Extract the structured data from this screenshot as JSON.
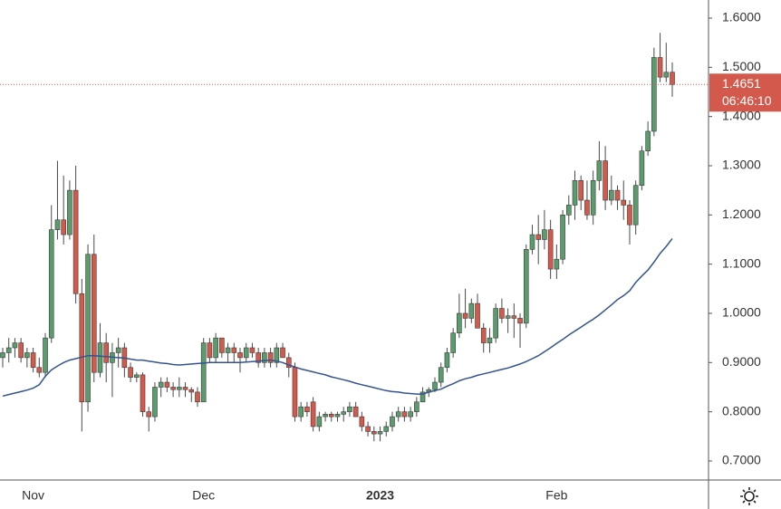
{
  "chart_data": {
    "type": "candlestick",
    "up_color": "#5b9c6c",
    "down_color": "#d2594b",
    "ma_color": "#33548f",
    "ylim": [
      0.6613,
      1.6368
    ],
    "yticks": [
      {
        "value": 0.7,
        "label": "0.7000"
      },
      {
        "value": 0.8,
        "label": "0.8000"
      },
      {
        "value": 0.9,
        "label": "0.9000"
      },
      {
        "value": 1.0,
        "label": "1.0000"
      },
      {
        "value": 1.1,
        "label": "1.1000"
      },
      {
        "value": 1.2,
        "label": "1.2000"
      },
      {
        "value": 1.3,
        "label": "1.3000"
      },
      {
        "value": 1.4,
        "label": "1.4000"
      },
      {
        "value": 1.5,
        "label": "1.5000"
      },
      {
        "value": 1.6,
        "label": "1.6000"
      }
    ],
    "countdown": "06:46:10",
    "categories": [
      null,
      null,
      null,
      null,
      null,
      "Nov",
      null,
      null,
      null,
      null,
      null,
      null,
      null,
      null,
      null,
      null,
      null,
      null,
      null,
      null,
      null,
      null,
      null,
      null,
      null,
      null,
      null,
      null,
      null,
      null,
      null,
      null,
      null,
      "Dec",
      null,
      null,
      null,
      null,
      null,
      null,
      null,
      null,
      null,
      null,
      null,
      null,
      null,
      null,
      null,
      null,
      null,
      null,
      null,
      null,
      null,
      null,
      null,
      null,
      null,
      null,
      null,
      null,
      "2023",
      null,
      null,
      null,
      null,
      null,
      null,
      null,
      null,
      null,
      null,
      null,
      null,
      null,
      null,
      null,
      null,
      null,
      null,
      null,
      null,
      null,
      null,
      null,
      null,
      null,
      null,
      null,
      null,
      "Feb",
      null,
      null,
      null,
      null,
      null,
      null,
      null,
      null,
      null,
      null,
      null,
      null,
      null,
      null,
      null,
      null,
      null,
      null
    ],
    "ohlc": [
      [
        0.91,
        0.93,
        0.89,
        0.92
      ],
      [
        0.92,
        0.95,
        0.9,
        0.93
      ],
      [
        0.93,
        0.95,
        0.91,
        0.94
      ],
      [
        0.94,
        0.95,
        0.9,
        0.91
      ],
      [
        0.91,
        0.93,
        0.89,
        0.92
      ],
      [
        0.92,
        0.93,
        0.88,
        0.89
      ],
      [
        0.89,
        0.91,
        0.87,
        0.88
      ],
      [
        0.88,
        0.96,
        0.87,
        0.95
      ],
      [
        0.95,
        1.22,
        0.94,
        1.17
      ],
      [
        1.17,
        1.31,
        1.15,
        1.19
      ],
      [
        1.19,
        1.28,
        1.14,
        1.16
      ],
      [
        1.16,
        1.27,
        1.15,
        1.25
      ],
      [
        1.25,
        1.3,
        1.02,
        1.04
      ],
      [
        1.04,
        1.07,
        0.76,
        0.82
      ],
      [
        0.82,
        1.14,
        0.8,
        1.12
      ],
      [
        1.12,
        1.16,
        0.86,
        0.88
      ],
      [
        0.88,
        0.98,
        0.87,
        0.94
      ],
      [
        0.94,
        0.96,
        0.86,
        0.9
      ],
      [
        0.9,
        0.94,
        0.83,
        0.92
      ],
      [
        0.92,
        0.95,
        0.89,
        0.93
      ],
      [
        0.93,
        0.94,
        0.87,
        0.89
      ],
      [
        0.89,
        0.9,
        0.86,
        0.87
      ],
      [
        0.87,
        0.88,
        0.86,
        0.875
      ],
      [
        0.875,
        0.88,
        0.79,
        0.8
      ],
      [
        0.8,
        0.81,
        0.76,
        0.79
      ],
      [
        0.79,
        0.86,
        0.78,
        0.85
      ],
      [
        0.85,
        0.87,
        0.83,
        0.86
      ],
      [
        0.86,
        0.87,
        0.84,
        0.85
      ],
      [
        0.85,
        0.86,
        0.83,
        0.845
      ],
      [
        0.845,
        0.87,
        0.83,
        0.85
      ],
      [
        0.85,
        0.86,
        0.83,
        0.845
      ],
      [
        0.845,
        0.85,
        0.82,
        0.84
      ],
      [
        0.84,
        0.85,
        0.81,
        0.82
      ],
      [
        0.82,
        0.95,
        0.82,
        0.94
      ],
      [
        0.94,
        0.95,
        0.9,
        0.91
      ],
      [
        0.91,
        0.96,
        0.9,
        0.95
      ],
      [
        0.95,
        0.95,
        0.91,
        0.92
      ],
      [
        0.92,
        0.94,
        0.9,
        0.93
      ],
      [
        0.93,
        0.94,
        0.9,
        0.92
      ],
      [
        0.92,
        0.93,
        0.88,
        0.91
      ],
      [
        0.91,
        0.94,
        0.9,
        0.93
      ],
      [
        0.93,
        0.94,
        0.91,
        0.92
      ],
      [
        0.92,
        0.93,
        0.89,
        0.9
      ],
      [
        0.9,
        0.93,
        0.89,
        0.92
      ],
      [
        0.92,
        0.93,
        0.89,
        0.9
      ],
      [
        0.9,
        0.94,
        0.89,
        0.93
      ],
      [
        0.93,
        0.94,
        0.91,
        0.91
      ],
      [
        0.91,
        0.92,
        0.87,
        0.89
      ],
      [
        0.89,
        0.9,
        0.78,
        0.79
      ],
      [
        0.79,
        0.82,
        0.78,
        0.81
      ],
      [
        0.81,
        0.82,
        0.79,
        0.8
      ],
      [
        0.82,
        0.83,
        0.76,
        0.77
      ],
      [
        0.77,
        0.8,
        0.76,
        0.79
      ],
      [
        0.79,
        0.8,
        0.78,
        0.795
      ],
      [
        0.795,
        0.8,
        0.78,
        0.79
      ],
      [
        0.79,
        0.8,
        0.78,
        0.795
      ],
      [
        0.795,
        0.81,
        0.78,
        0.8
      ],
      [
        0.8,
        0.82,
        0.79,
        0.81
      ],
      [
        0.81,
        0.82,
        0.79,
        0.79
      ],
      [
        0.79,
        0.8,
        0.76,
        0.77
      ],
      [
        0.77,
        0.78,
        0.75,
        0.76
      ],
      [
        0.76,
        0.77,
        0.74,
        0.755
      ],
      [
        0.755,
        0.77,
        0.74,
        0.76
      ],
      [
        0.76,
        0.78,
        0.75,
        0.77
      ],
      [
        0.77,
        0.8,
        0.76,
        0.79
      ],
      [
        0.79,
        0.81,
        0.78,
        0.8
      ],
      [
        0.8,
        0.81,
        0.78,
        0.79
      ],
      [
        0.79,
        0.81,
        0.78,
        0.8
      ],
      [
        0.8,
        0.83,
        0.79,
        0.82
      ],
      [
        0.82,
        0.85,
        0.82,
        0.84
      ],
      [
        0.84,
        0.85,
        0.83,
        0.845
      ],
      [
        0.845,
        0.87,
        0.84,
        0.86
      ],
      [
        0.86,
        0.9,
        0.85,
        0.89
      ],
      [
        0.89,
        0.93,
        0.88,
        0.92
      ],
      [
        0.92,
        0.97,
        0.91,
        0.96
      ],
      [
        0.96,
        1.04,
        0.95,
        1.0
      ],
      [
        1.0,
        1.05,
        0.97,
        0.99
      ],
      [
        0.99,
        1.03,
        0.98,
        1.02
      ],
      [
        1.02,
        1.04,
        0.97,
        0.97
      ],
      [
        0.97,
        0.98,
        0.92,
        0.94
      ],
      [
        0.94,
        0.97,
        0.92,
        0.95
      ],
      [
        0.95,
        1.02,
        0.94,
        1.01
      ],
      [
        1.01,
        1.03,
        0.98,
        0.99
      ],
      [
        0.99,
        1.01,
        0.96,
        0.995
      ],
      [
        0.995,
        1.02,
        0.95,
        0.99
      ],
      [
        0.99,
        1.0,
        0.93,
        0.98
      ],
      [
        0.98,
        1.14,
        0.97,
        1.13
      ],
      [
        1.13,
        1.18,
        1.12,
        1.16
      ],
      [
        1.16,
        1.2,
        1.1,
        1.15
      ],
      [
        1.15,
        1.21,
        1.13,
        1.17
      ],
      [
        1.17,
        1.19,
        1.07,
        1.09
      ],
      [
        1.09,
        1.14,
        1.07,
        1.11
      ],
      [
        1.11,
        1.21,
        1.1,
        1.2
      ],
      [
        1.2,
        1.24,
        1.18,
        1.22
      ],
      [
        1.22,
        1.29,
        1.19,
        1.27
      ],
      [
        1.27,
        1.28,
        1.21,
        1.23
      ],
      [
        1.23,
        1.27,
        1.19,
        1.2
      ],
      [
        1.2,
        1.29,
        1.18,
        1.27
      ],
      [
        1.27,
        1.35,
        1.25,
        1.31
      ],
      [
        1.31,
        1.34,
        1.21,
        1.23
      ],
      [
        1.23,
        1.28,
        1.22,
        1.25
      ],
      [
        1.25,
        1.26,
        1.21,
        1.23
      ],
      [
        1.23,
        1.27,
        1.19,
        1.22
      ],
      [
        1.22,
        1.23,
        1.14,
        1.18
      ],
      [
        1.18,
        1.27,
        1.16,
        1.26
      ],
      [
        1.26,
        1.34,
        1.25,
        1.33
      ],
      [
        1.33,
        1.39,
        1.32,
        1.37
      ],
      [
        1.37,
        1.54,
        1.36,
        1.52
      ],
      [
        1.52,
        1.57,
        1.47,
        1.48
      ],
      [
        1.48,
        1.55,
        1.47,
        1.49
      ],
      [
        1.49,
        1.51,
        1.44,
        1.4651
      ]
    ],
    "ma": [
      0.832,
      0.835,
      0.838,
      0.841,
      0.844,
      0.848,
      0.855,
      0.872,
      0.885,
      0.893,
      0.9,
      0.905,
      0.908,
      0.911,
      0.914,
      0.914,
      0.913,
      0.912,
      0.911,
      0.91,
      0.909,
      0.907,
      0.905,
      0.905,
      0.903,
      0.901,
      0.899,
      0.898,
      0.896,
      0.895,
      0.896,
      0.897,
      0.898,
      0.899,
      0.9,
      0.9,
      0.9,
      0.9,
      0.9,
      0.9,
      0.901,
      0.902,
      0.903,
      0.904,
      0.905,
      0.903,
      0.9,
      0.895,
      0.891,
      0.887,
      0.884,
      0.881,
      0.878,
      0.875,
      0.871,
      0.868,
      0.865,
      0.862,
      0.858,
      0.855,
      0.852,
      0.849,
      0.846,
      0.843,
      0.841,
      0.84,
      0.838,
      0.837,
      0.836,
      0.836,
      0.84,
      0.843,
      0.846,
      0.852,
      0.857,
      0.863,
      0.867,
      0.87,
      0.874,
      0.877,
      0.88,
      0.883,
      0.886,
      0.889,
      0.893,
      0.897,
      0.902,
      0.908,
      0.914,
      0.922,
      0.93,
      0.939,
      0.947,
      0.956,
      0.964,
      0.972,
      0.98,
      0.988,
      0.997,
      1.007,
      1.017,
      1.028,
      1.036,
      1.046,
      1.063,
      1.076,
      1.088,
      1.104,
      1.122,
      1.136,
      1.152
    ]
  }
}
